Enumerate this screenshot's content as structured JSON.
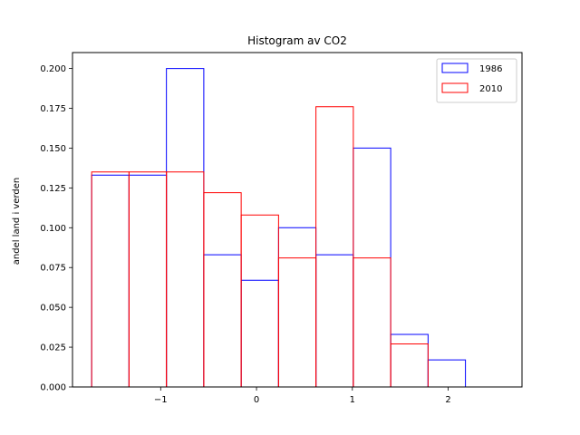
{
  "chart_data": {
    "type": "bar",
    "title": "Histogram av CO2",
    "xlabel": "",
    "ylabel": "andel land i verden",
    "xlim": [
      -1.92,
      2.77
    ],
    "ylim": [
      0,
      0.21
    ],
    "bin_edges": [
      -1.72,
      -1.33,
      -0.94,
      -0.55,
      -0.16,
      0.23,
      0.62,
      1.01,
      1.4,
      1.79,
      2.18,
      2.57
    ],
    "xticks": [
      -1,
      0,
      1,
      2
    ],
    "xtick_labels": [
      "−1",
      "0",
      "1",
      "2"
    ],
    "yticks": [
      0,
      0.025,
      0.05,
      0.075,
      0.1,
      0.125,
      0.15,
      0.175,
      0.2
    ],
    "ytick_labels": [
      "0.000",
      "0.025",
      "0.050",
      "0.075",
      "0.100",
      "0.125",
      "0.150",
      "0.175",
      "0.200"
    ],
    "legend_position": "top-right",
    "grid": false,
    "series": [
      {
        "name": "1986",
        "color": "#0000ff",
        "values": [
          0.133,
          0.133,
          0.2,
          0.083,
          0.067,
          0.1,
          0.083,
          0.15,
          0.033,
          0.017,
          0.0
        ]
      },
      {
        "name": "2010",
        "color": "#ff0000",
        "values": [
          0.135,
          0.135,
          0.135,
          0.122,
          0.108,
          0.081,
          0.176,
          0.081,
          0.027,
          0.0,
          0.0
        ]
      }
    ]
  }
}
